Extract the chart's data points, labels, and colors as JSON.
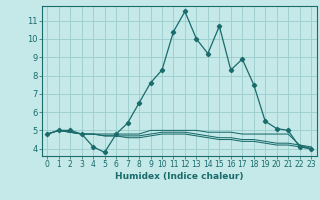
{
  "xlabel": "Humidex (Indice chaleur)",
  "bg_color": "#c5e8e8",
  "grid_color": "#99cccc",
  "line_color": "#1a6b6b",
  "xlim": [
    -0.5,
    23.5
  ],
  "ylim": [
    3.6,
    11.8
  ],
  "yticks": [
    4,
    5,
    6,
    7,
    8,
    9,
    10,
    11
  ],
  "xticks": [
    0,
    1,
    2,
    3,
    4,
    5,
    6,
    7,
    8,
    9,
    10,
    11,
    12,
    13,
    14,
    15,
    16,
    17,
    18,
    19,
    20,
    21,
    22,
    23
  ],
  "series": [
    [
      4.8,
      5.0,
      5.0,
      4.8,
      4.1,
      3.8,
      4.8,
      5.4,
      6.5,
      7.6,
      8.3,
      10.4,
      11.5,
      10.0,
      9.2,
      10.7,
      8.3,
      8.9,
      7.5,
      5.5,
      5.1,
      5.0,
      4.1,
      4.0
    ],
    [
      4.8,
      5.0,
      4.9,
      4.8,
      4.8,
      4.7,
      4.7,
      4.7,
      4.7,
      4.8,
      4.9,
      4.9,
      4.9,
      4.8,
      4.7,
      4.6,
      4.6,
      4.5,
      4.5,
      4.4,
      4.3,
      4.3,
      4.2,
      4.1
    ],
    [
      4.8,
      5.0,
      4.9,
      4.8,
      4.8,
      4.7,
      4.7,
      4.6,
      4.6,
      4.7,
      4.8,
      4.8,
      4.8,
      4.7,
      4.6,
      4.5,
      4.5,
      4.4,
      4.4,
      4.3,
      4.2,
      4.2,
      4.1,
      4.0
    ],
    [
      4.8,
      5.0,
      4.9,
      4.8,
      4.8,
      4.8,
      4.8,
      4.8,
      4.8,
      5.0,
      5.0,
      5.0,
      5.0,
      5.0,
      4.9,
      4.9,
      4.9,
      4.8,
      4.8,
      4.8,
      4.8,
      4.8,
      4.2,
      4.0
    ]
  ],
  "marker_series": 0,
  "font_size_tick": 5.5,
  "font_size_label": 6.5
}
